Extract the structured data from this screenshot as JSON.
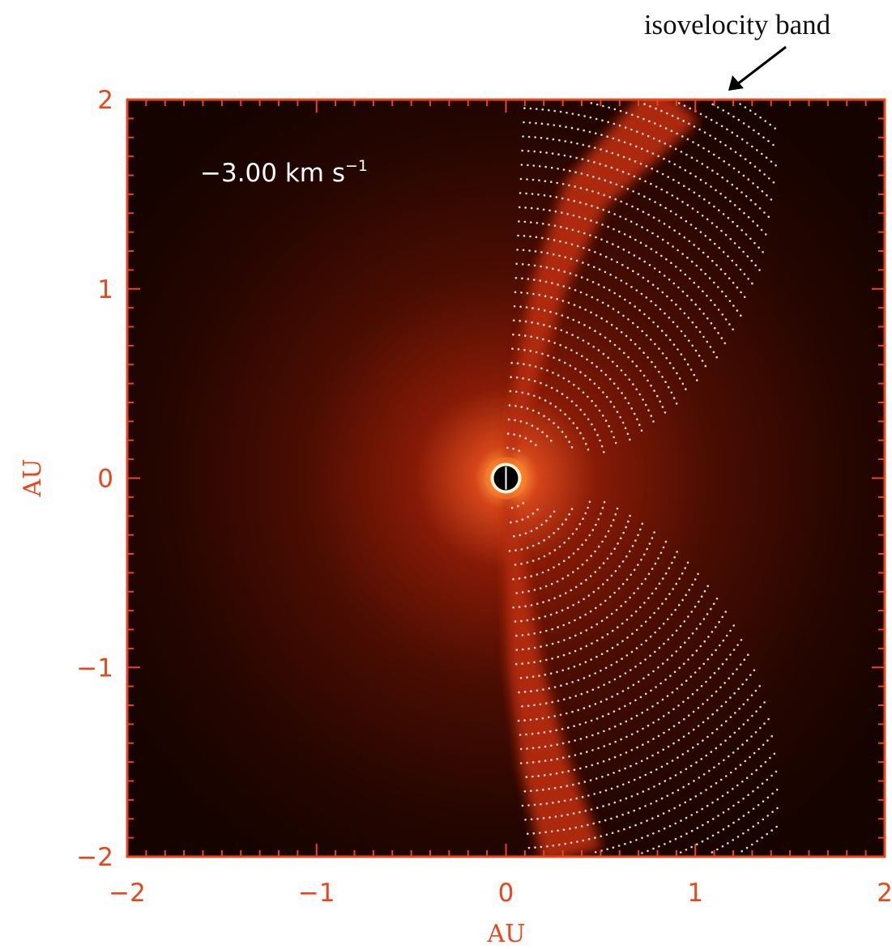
{
  "annotation": {
    "text": "isovelocity band"
  },
  "chart_data": {
    "type": "heatmap",
    "title": "",
    "xlabel": "AU",
    "ylabel": "AU",
    "xlim": [
      -2,
      2
    ],
    "ylim": [
      -2,
      2
    ],
    "x_ticks": [
      -2,
      -1,
      0,
      1,
      2
    ],
    "y_ticks": [
      -2,
      -1,
      0,
      1,
      2
    ],
    "x_tick_labels": [
      "−2",
      "−1",
      "0",
      "1",
      "2"
    ],
    "y_tick_labels": [
      "−2",
      "−1",
      "0",
      "1",
      "2"
    ],
    "velocity_label": {
      "text": "−3.00 km s",
      "superscript": "−1"
    },
    "isovelocity_band": {
      "upper_lobe": [
        [
          0.0,
          0.05
        ],
        [
          0.1,
          0.5
        ],
        [
          0.22,
          1.0
        ],
        [
          0.42,
          1.5
        ],
        [
          0.9,
          2.0
        ]
      ],
      "lower_lobe": [
        [
          0.0,
          -0.05
        ],
        [
          0.05,
          -0.5
        ],
        [
          0.1,
          -1.0
        ],
        [
          0.2,
          -1.5
        ],
        [
          0.35,
          -2.0
        ]
      ]
    },
    "dotted_arcs": {
      "count": 30,
      "x_start": 0.0
    },
    "colors": {
      "frame": "#e8471b",
      "background_dark": "#150400",
      "disk_glow": "#a82008",
      "band": "#b42c10",
      "dots": "#ffffff",
      "central_disk": "#000000",
      "central_ring": "#fff6d8"
    }
  }
}
